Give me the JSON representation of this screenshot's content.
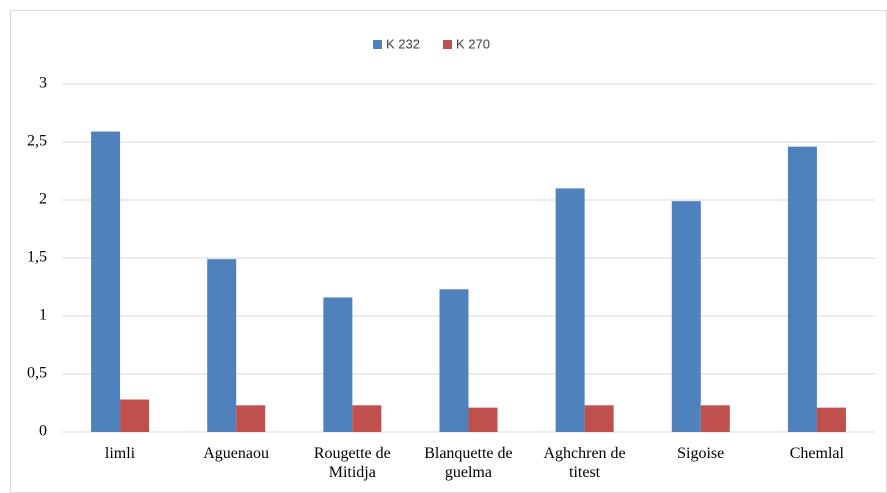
{
  "chart_data": {
    "type": "bar",
    "categories": [
      "limli",
      "Aguenaou",
      "Rougette de Mitidja",
      "Blanquette de guelma",
      "Aghchren de titest",
      "Sigoise",
      "Chemlal"
    ],
    "series": [
      {
        "name": "K 232",
        "color": "#4f81bd",
        "values": [
          2.59,
          1.49,
          1.16,
          1.23,
          2.1,
          1.99,
          2.46
        ]
      },
      {
        "name": "K 270",
        "color": "#c0504d",
        "values": [
          0.28,
          0.23,
          0.23,
          0.21,
          0.23,
          0.23,
          0.21
        ]
      }
    ],
    "ylim": [
      0,
      3
    ],
    "yticks": [
      0,
      {
        "value": 0.5,
        "label": "0,5"
      },
      1,
      {
        "value": 1.5,
        "label": "1,5"
      },
      2,
      {
        "value": 2.5,
        "label": "2,5"
      },
      3
    ],
    "grid": true,
    "legend": "top"
  }
}
